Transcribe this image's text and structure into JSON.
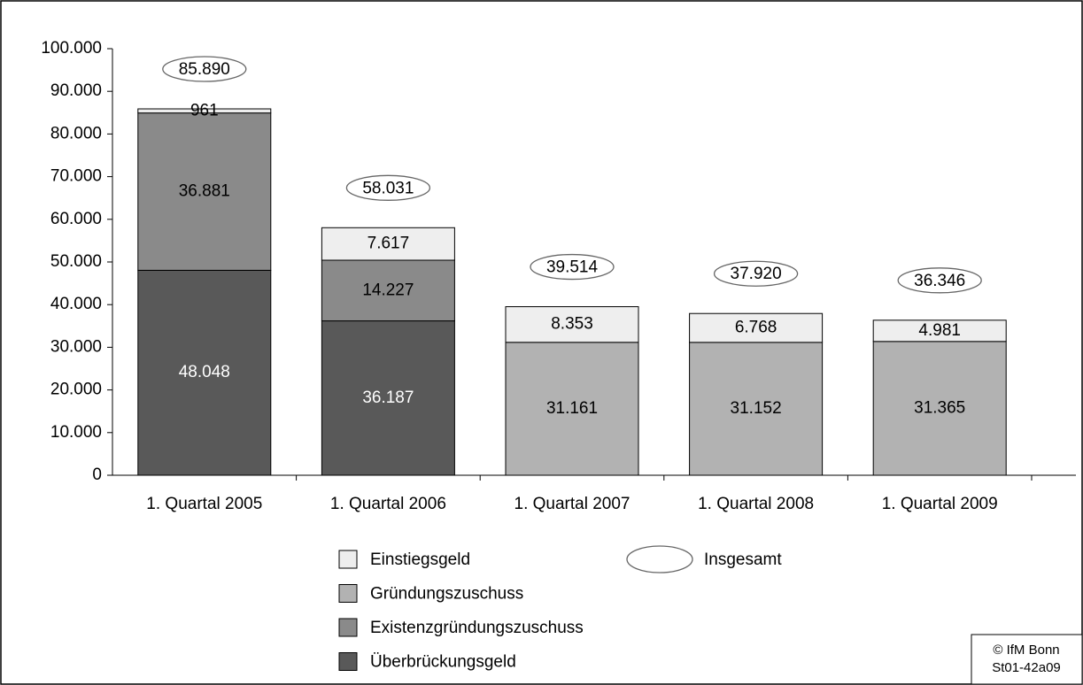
{
  "chart_data": {
    "type": "stacked_bar",
    "categories": [
      "1. Quartal 2005",
      "1. Quartal 2006",
      "1. Quartal 2007",
      "1. Quartal 2008",
      "1. Quartal 2009"
    ],
    "series": [
      {
        "name": "Überbrückungsgeld",
        "color": "#595959",
        "label_color": "#ffffff",
        "values": [
          48048,
          36187,
          null,
          null,
          null
        ],
        "value_labels": [
          "48.048",
          "36.187",
          null,
          null,
          null
        ]
      },
      {
        "name": "Existenzgründungszuschuss",
        "color": "#8a8a8a",
        "label_color": "#000000",
        "values": [
          36881,
          14227,
          null,
          null,
          null
        ],
        "value_labels": [
          "36.881",
          "14.227",
          null,
          null,
          null
        ]
      },
      {
        "name": "Gründungszuschuss",
        "color": "#b2b2b2",
        "label_color": "#000000",
        "values": [
          null,
          null,
          31161,
          31152,
          31365
        ],
        "value_labels": [
          null,
          null,
          "31.161",
          "31.152",
          "31.365"
        ]
      },
      {
        "name": "Einstiegsgeld",
        "color": "#eeeeee",
        "label_color": "#000000",
        "values": [
          961,
          7617,
          8353,
          6768,
          4981
        ],
        "value_labels": [
          "961",
          "7.617",
          "8.353",
          "6.768",
          "4.981"
        ]
      }
    ],
    "totals": {
      "name": "Insgesamt",
      "values": [
        85890,
        58031,
        39514,
        37920,
        36346
      ],
      "value_labels": [
        "85.890",
        "58.031",
        "39.514",
        "37.920",
        "36.346"
      ]
    },
    "ylim": [
      0,
      100000
    ],
    "yticks": [
      0,
      {
        "value": 10000,
        "label": "10.000"
      },
      {
        "value": 20000,
        "label": "20.000"
      },
      {
        "value": 30000,
        "label": "30.000"
      },
      {
        "value": 40000,
        "label": "40.000"
      },
      {
        "value": 50000,
        "label": "50.000"
      },
      {
        "value": 60000,
        "label": "60.000"
      },
      {
        "value": 70000,
        "label": "70.000"
      },
      {
        "value": 80000,
        "label": "80.000"
      },
      {
        "value": 90000,
        "label": "90.000"
      },
      {
        "value": 100000,
        "label": "100.000"
      }
    ],
    "grid": false,
    "source_lines": [
      "© IfM Bonn",
      "St01-42a09"
    ]
  }
}
